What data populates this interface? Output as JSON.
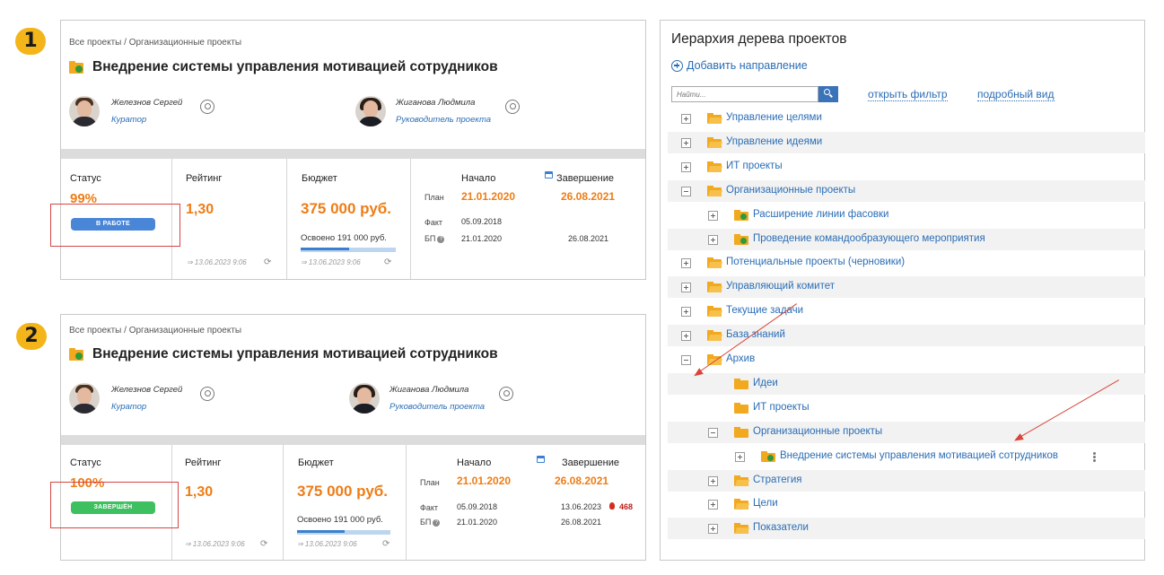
{
  "steps": [
    "1",
    "2"
  ],
  "card1": {
    "breadcrumb": "Все проекты / Организационные проекты",
    "title": "Внедрение системы управления мотивацией сотрудников",
    "curator_name": "Железнов Сергей",
    "curator_role": "Куратор",
    "manager_name": "Жиганова Людмила",
    "manager_role": "Руководитель проекта",
    "status_label": "Статус",
    "status_pct": "99%",
    "status_badge": "В РАБОТЕ",
    "rating_label": "Рейтинг",
    "rating_value": "1,30",
    "rating_stamp": "⇒ 13.06.2023 9:06",
    "budget_label": "Бюджет",
    "budget_value": "375 000 руб.",
    "budget_spent": "Освоено  191 000 руб.",
    "budget_stamp": "⇒ 13.06.2023 9:06",
    "budget_progress": 0.51,
    "start_label": "Начало",
    "end_label": "Завершение",
    "plan_label": "План",
    "plan_start": "21.01.2020",
    "plan_end": "26.08.2021",
    "fact_label": "Факт",
    "fact_start": "05.09.2018",
    "fact_end": "",
    "bp_label": "БП",
    "bp_start": "21.01.2020",
    "bp_end": "26.08.2021"
  },
  "card2": {
    "breadcrumb": "Все проекты / Организационные проекты",
    "title": "Внедрение системы управления мотивацией сотрудников",
    "curator_name": "Железнов Сергей",
    "curator_role": "Куратор",
    "manager_name": "Жиганова Людмила",
    "manager_role": "Руководитель проекта",
    "status_label": "Статус",
    "status_pct": "100%",
    "status_badge": "ЗАВЕРШЁН",
    "rating_label": "Рейтинг",
    "rating_value": "1,30",
    "rating_stamp": "⇒ 13.06.2023 9:06",
    "budget_label": "Бюджет",
    "budget_value": "375 000 руб.",
    "budget_spent": "Освоено  191 000 руб.",
    "budget_stamp": "⇒ 13.06.2023 9:06",
    "budget_progress": 0.51,
    "start_label": "Начало",
    "end_label": "Завершение",
    "plan_label": "План",
    "plan_start": "21.01.2020",
    "plan_end": "26.08.2021",
    "fact_label": "Факт",
    "fact_start": "05.09.2018",
    "fact_end": "13.06.2023",
    "overdue_days": "468",
    "bp_label": "БП",
    "bp_start": "21.01.2020",
    "bp_end": "26.08.2021"
  },
  "colors": {
    "accent_orange": "#ee7d16",
    "link_blue": "#2a6db5",
    "badge_in_progress": "#4a86d8",
    "badge_done": "#3ec060",
    "highlight_red": "#d64545",
    "step_badge": "#f3b51a"
  },
  "tree": {
    "title": "Иерархия дерева проектов",
    "add_direction": "Добавить направление",
    "search_placeholder": "Найти...",
    "open_filter": "открыть фильтр",
    "detailed_view": "подробный вид",
    "items": [
      {
        "label": "Управление целями",
        "level": 0,
        "expander": "plus",
        "icon": "folder-icon"
      },
      {
        "label": "Управление идеями",
        "level": 0,
        "expander": "plus",
        "icon": "folder-icon"
      },
      {
        "label": "ИТ проекты",
        "level": 0,
        "expander": "plus",
        "icon": "folder-icon"
      },
      {
        "label": "Организационные проекты",
        "level": 0,
        "expander": "minus",
        "icon": "folder-icon"
      },
      {
        "label": "Расширение линии фасовки",
        "level": 1,
        "expander": "plus",
        "icon": "project-folder-icon"
      },
      {
        "label": "Проведение командообразующего мероприятия",
        "level": 1,
        "expander": "plus",
        "icon": "project-folder-icon"
      },
      {
        "label": "Потенциальные проекты (черновики)",
        "level": 0,
        "expander": "plus",
        "icon": "folder-icon"
      },
      {
        "label": "Управляющий комитет",
        "level": 0,
        "expander": "plus",
        "icon": "folder-icon"
      },
      {
        "label": "Текущие задачи",
        "level": 0,
        "expander": "plus",
        "icon": "folder-icon"
      },
      {
        "label": "База знаний",
        "level": 0,
        "expander": "plus",
        "icon": "folder-icon"
      },
      {
        "label": "Архив",
        "level": 0,
        "expander": "minus",
        "icon": "folder-icon"
      },
      {
        "label": "Идеи",
        "level": 1,
        "expander": "none",
        "icon": "folder-closed-icon"
      },
      {
        "label": "ИТ проекты",
        "level": 1,
        "expander": "none",
        "icon": "folder-closed-icon"
      },
      {
        "label": "Организационные проекты",
        "level": 1,
        "expander": "minus",
        "icon": "folder-closed-icon"
      },
      {
        "label": "Внедрение системы управления мотивацией сотрудников",
        "level": 2,
        "expander": "plus",
        "icon": "project-folder-icon",
        "menu": true
      },
      {
        "label": "Стратегия",
        "level": 1,
        "expander": "plus",
        "icon": "folder-icon"
      },
      {
        "label": "Цели",
        "level": 1,
        "expander": "plus",
        "icon": "folder-icon"
      },
      {
        "label": "Показатели",
        "level": 1,
        "expander": "plus",
        "icon": "folder-icon"
      }
    ]
  }
}
